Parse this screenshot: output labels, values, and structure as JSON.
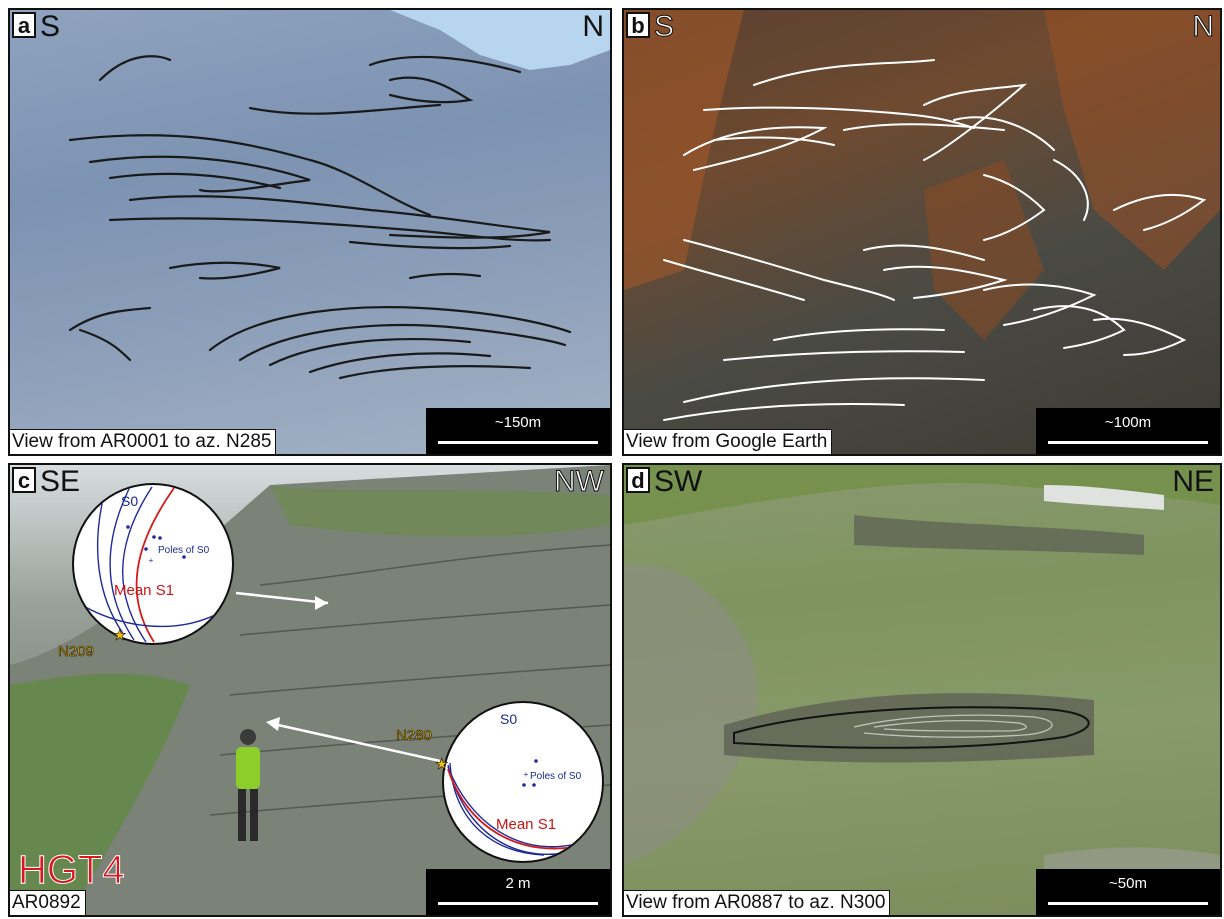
{
  "panels": {
    "a": {
      "letter": "a",
      "dir_left": "S",
      "dir_right": "N",
      "caption": "View from AR0001 to az. N285",
      "scale": "~150m"
    },
    "b": {
      "letter": "b",
      "dir_left": "S",
      "dir_right": "N",
      "caption": "View from Google Earth",
      "scale": "~100m"
    },
    "c": {
      "letter": "c",
      "dir_left": "SE",
      "dir_right": "NW",
      "caption": "AR0892",
      "label": "HGT4",
      "scale": "2 m",
      "stereonet_upper": {
        "s0": "S0",
        "poles": "Poles of S0",
        "mean": "Mean S1",
        "strike": "N209"
      },
      "stereonet_lower": {
        "s0": "S0",
        "poles": "Poles of S0",
        "mean": "Mean S1",
        "strike": "N280"
      }
    },
    "d": {
      "letter": "d",
      "dir_left": "SW",
      "dir_right": "NE",
      "caption": "View from AR0887 to az. N300",
      "scale": "~50m"
    }
  },
  "colors": {
    "fold_trace_a": "#1a1a1a",
    "fold_trace_b": "#ffffff",
    "great_circle_s0": "#1f2a9c",
    "great_circle_s1": "#d41a1a",
    "hgt_label": "#d8181e",
    "strike_star": "#f4c010"
  }
}
